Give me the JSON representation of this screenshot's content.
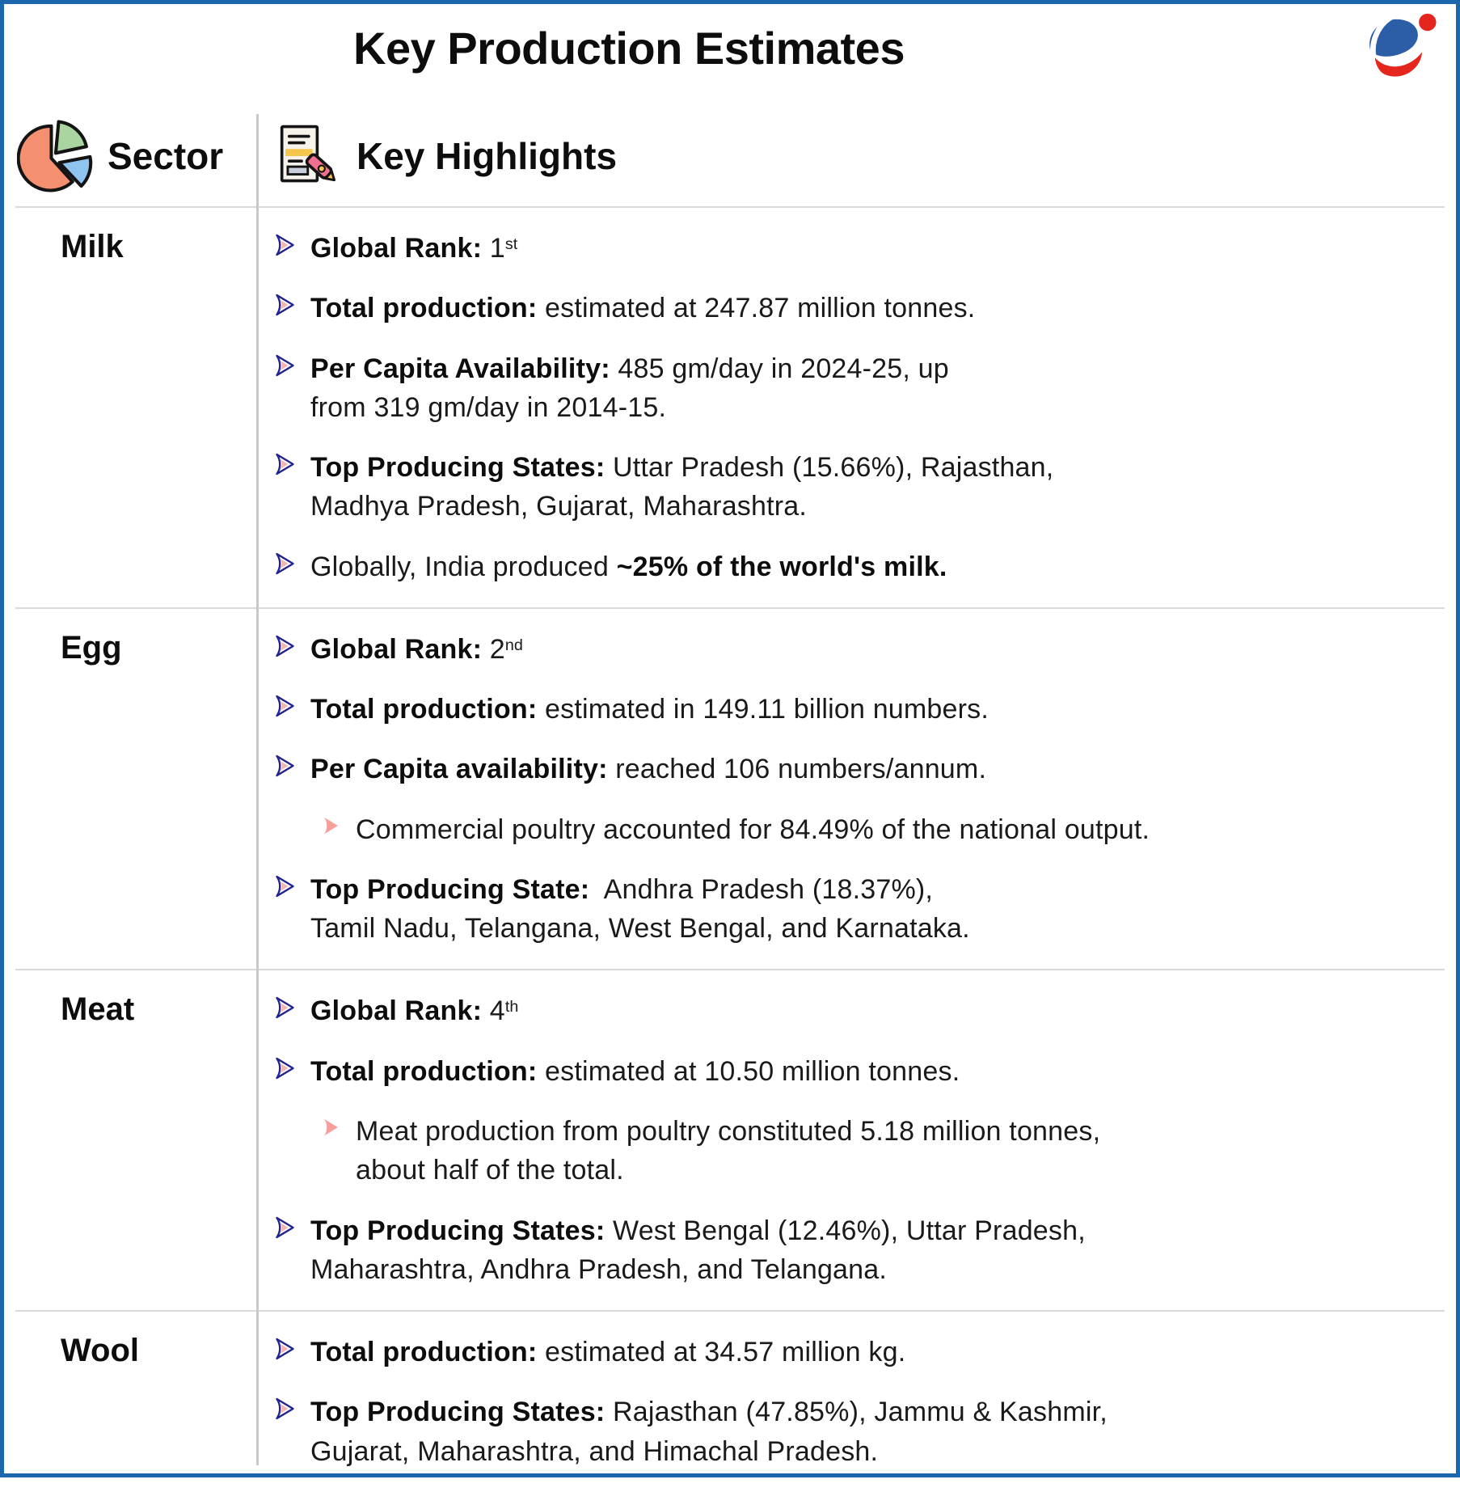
{
  "page": {
    "title": "Key Production Estimates"
  },
  "logo": {
    "name": "brand-logo",
    "blue": "#2b5ea7",
    "red": "#e4261f"
  },
  "colors": {
    "border_blue": "#1b67ad",
    "column_divider_gray": "#c9c9c9",
    "row_separator_gray": "#d9d9d9",
    "text_black": "#1a1a1a",
    "bullet_outline_navy": "#23238f",
    "bullet_fill_pink": "#f6b3ae",
    "sub_bullet_salmon": "#f89f9b",
    "pie_coral": "#f4906f",
    "pie_green": "#a8d5a0",
    "pie_blue": "#8fc3f0",
    "doc_highlight_yellow": "#f6c54d",
    "doc_pen_pink": "#f2708f",
    "doc_gray_box": "#c9cfda"
  },
  "table": {
    "columns": [
      {
        "label": "Sector",
        "icon": "pie-chart-icon"
      },
      {
        "label": "Key Highlights",
        "icon": "document-highlighter-icon"
      }
    ],
    "bullet_icons": {
      "level1": "chevron-double-icon",
      "level2": "chevron-single-icon"
    },
    "rows": [
      {
        "sector": "Milk",
        "items": [
          {
            "level": 1,
            "segments": [
              {
                "t": "Global Rank: ",
                "b": true
              },
              {
                "t": "1"
              },
              {
                "t": "st",
                "sup": true
              }
            ]
          },
          {
            "level": 1,
            "segments": [
              {
                "t": "Total production: ",
                "b": true
              },
              {
                "t": "estimated at 247.87 million tonnes."
              }
            ]
          },
          {
            "level": 1,
            "segments": [
              {
                "t": "Per Capita Availability: ",
                "b": true
              },
              {
                "t": "485 gm/day in 2024-25, up\nfrom 319 gm/day in 2014-15."
              }
            ]
          },
          {
            "level": 1,
            "segments": [
              {
                "t": "Top Producing States: ",
                "b": true
              },
              {
                "t": "Uttar Pradesh (15.66%), Rajasthan,\nMadhya Pradesh, Gujarat, Maharashtra."
              }
            ]
          },
          {
            "level": 1,
            "segments": [
              {
                "t": "Globally, India produced "
              },
              {
                "t": "~25% of the world's milk.",
                "b": true
              }
            ]
          }
        ]
      },
      {
        "sector": "Egg",
        "items": [
          {
            "level": 1,
            "segments": [
              {
                "t": "Global Rank: ",
                "b": true
              },
              {
                "t": "2"
              },
              {
                "t": "nd",
                "sup": true
              }
            ]
          },
          {
            "level": 1,
            "segments": [
              {
                "t": "Total production: ",
                "b": true
              },
              {
                "t": "estimated in 149.11 billion numbers."
              }
            ]
          },
          {
            "level": 1,
            "segments": [
              {
                "t": "Per Capita availability: ",
                "b": true
              },
              {
                "t": "reached 106 numbers/annum."
              }
            ]
          },
          {
            "level": 2,
            "segments": [
              {
                "t": "Commercial poultry accounted for 84.49% of the national output."
              }
            ]
          },
          {
            "level": 1,
            "segments": [
              {
                "t": "Top Producing State: ",
                "b": true
              },
              {
                "t": " Andhra Pradesh (18.37%),\nTamil Nadu, Telangana, West Bengal, and Karnataka."
              }
            ]
          }
        ]
      },
      {
        "sector": "Meat",
        "items": [
          {
            "level": 1,
            "segments": [
              {
                "t": "Global Rank: ",
                "b": true
              },
              {
                "t": "4"
              },
              {
                "t": "th",
                "sup": true
              }
            ]
          },
          {
            "level": 1,
            "segments": [
              {
                "t": "Total production: ",
                "b": true
              },
              {
                "t": "estimated at 10.50 million tonnes."
              }
            ]
          },
          {
            "level": 2,
            "segments": [
              {
                "t": "Meat production from poultry constituted 5.18 million tonnes,\nabout half of the total."
              }
            ]
          },
          {
            "level": 1,
            "segments": [
              {
                "t": "Top Producing States: ",
                "b": true
              },
              {
                "t": "West Bengal (12.46%), Uttar Pradesh,\nMaharashtra, Andhra Pradesh, and Telangana."
              }
            ]
          }
        ]
      },
      {
        "sector": "Wool",
        "items": [
          {
            "level": 1,
            "segments": [
              {
                "t": "Total production: ",
                "b": true
              },
              {
                "t": "estimated at 34.57 million kg."
              }
            ]
          },
          {
            "level": 1,
            "segments": [
              {
                "t": "Top Producing States: ",
                "b": true
              },
              {
                "t": "Rajasthan (47.85%), Jammu & Kashmir,\nGujarat, Maharashtra, and Himachal Pradesh."
              }
            ]
          }
        ]
      }
    ]
  }
}
